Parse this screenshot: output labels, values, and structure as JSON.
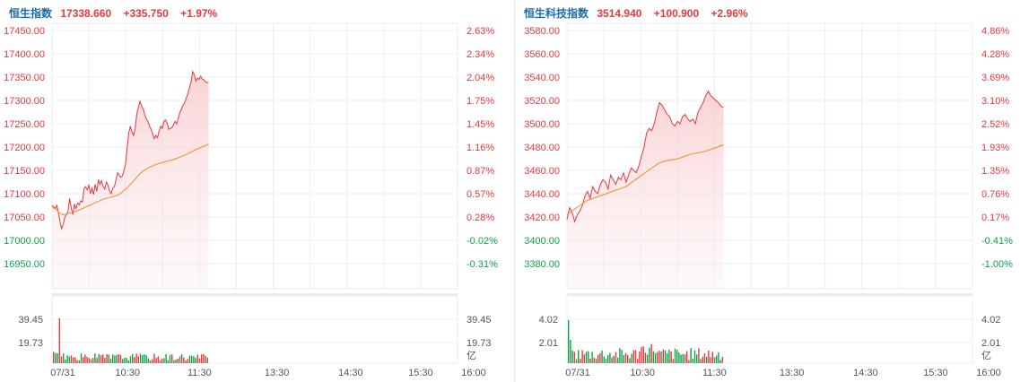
{
  "colors": {
    "up": "#e8373e",
    "down": "#0fa14a",
    "avg": "#f08a24",
    "title": "#1a6bb3",
    "grid": "#e8eef3",
    "axis_text": "#555555"
  },
  "chart_data": [
    {
      "type": "line",
      "title": "恒生指数",
      "last": "17338.660",
      "change": "+335.750",
      "change_pct": "+1.97%",
      "date_label": "07/31",
      "x_ticks": [
        "07/31",
        "10:30",
        "11:30",
        "13:30",
        "14:30",
        "15:30",
        "16:00"
      ],
      "y_left_ticks": [
        "17450.00",
        "17400.00",
        "17350.00",
        "17300.00",
        "17250.00",
        "17200.00",
        "17150.00",
        "17100.00",
        "17050.00",
        "17000.00",
        "16950.00"
      ],
      "y_right_ticks": [
        "2.63%",
        "2.34%",
        "2.04%",
        "1.75%",
        "1.45%",
        "1.16%",
        "0.87%",
        "0.57%",
        "0.28%",
        "-0.02%",
        "-0.31%"
      ],
      "ylim": [
        16900,
        17450
      ],
      "prev_close": 17002.91,
      "price_series": [
        17075,
        17072,
        17068,
        17075,
        17060,
        17040,
        17025,
        17035,
        17050,
        17055,
        17062,
        17090,
        17070,
        17055,
        17078,
        17068,
        17080,
        17076,
        17085,
        17082,
        17110,
        17115,
        17108,
        17118,
        17100,
        17112,
        17098,
        17120,
        17105,
        17130,
        17120,
        17128,
        17115,
        17110,
        17125,
        17118,
        17105,
        17100,
        17112,
        17115,
        17130,
        17145,
        17140,
        17135,
        17138,
        17150,
        17165,
        17200,
        17230,
        17245,
        17232,
        17225,
        17240,
        17270,
        17285,
        17298,
        17288,
        17282,
        17270,
        17260,
        17255,
        17245,
        17238,
        17228,
        17218,
        17225,
        17220,
        17235,
        17245,
        17240,
        17255,
        17258,
        17252,
        17238,
        17240,
        17242,
        17248,
        17255,
        17250,
        17262,
        17275,
        17282,
        17290,
        17296,
        17305,
        17315,
        17328,
        17340,
        17362,
        17355,
        17342,
        17348,
        17345,
        17352,
        17346,
        17344,
        17340,
        17338,
        17339
      ],
      "avg_series": [
        17070,
        17068,
        17060,
        17055,
        17056,
        17058,
        17060,
        17062,
        17065,
        17068,
        17072,
        17075,
        17078,
        17082,
        17085,
        17088,
        17090,
        17092,
        17094,
        17096,
        17100,
        17106,
        17112,
        17120,
        17128,
        17136,
        17144,
        17150,
        17154,
        17158,
        17161,
        17164,
        17166,
        17168,
        17170,
        17172,
        17174,
        17177,
        17180,
        17183,
        17186,
        17190,
        17194,
        17197,
        17200,
        17203,
        17206
      ],
      "volume_label_ticks": [
        "39.45",
        "19.73"
      ],
      "volume_unit": "亿",
      "volume_max": 59.18
    },
    {
      "type": "line",
      "title": "恒生科技指数",
      "last": "3514.940",
      "change": "+100.900",
      "change_pct": "+2.96%",
      "date_label": "07/31",
      "x_ticks": [
        "07/31",
        "10:30",
        "11:30",
        "13:30",
        "14:30",
        "15:30",
        "16:00"
      ],
      "y_left_ticks": [
        "3580.00",
        "3560.00",
        "3540.00",
        "3520.00",
        "3500.00",
        "3480.00",
        "3460.00",
        "3440.00",
        "3420.00",
        "3400.00",
        "3380.00"
      ],
      "y_right_ticks": [
        "4.86%",
        "4.28%",
        "3.69%",
        "3.10%",
        "2.52%",
        "1.93%",
        "1.35%",
        "0.76%",
        "0.17%",
        "-0.41%",
        "-1.00%"
      ],
      "ylim": [
        3360,
        3580
      ],
      "prev_close": 3414.04,
      "price_series": [
        3418,
        3428,
        3424,
        3416,
        3422,
        3425,
        3430,
        3438,
        3442,
        3436,
        3446,
        3442,
        3440,
        3448,
        3452,
        3450,
        3444,
        3456,
        3452,
        3448,
        3454,
        3452,
        3458,
        3450,
        3456,
        3462,
        3460,
        3458,
        3464,
        3472,
        3480,
        3492,
        3496,
        3494,
        3500,
        3510,
        3518,
        3516,
        3512,
        3508,
        3506,
        3500,
        3498,
        3502,
        3500,
        3506,
        3508,
        3504,
        3502,
        3504,
        3500,
        3510,
        3514,
        3518,
        3524,
        3528,
        3524,
        3522,
        3520,
        3518,
        3515,
        3514
      ],
      "avg_series": [
        3422,
        3426,
        3430,
        3434,
        3436,
        3438,
        3440,
        3442,
        3444,
        3446,
        3450,
        3454,
        3458,
        3462,
        3466,
        3468,
        3469,
        3470,
        3472,
        3474,
        3475,
        3476,
        3478,
        3480,
        3482
      ],
      "volume_label_ticks": [
        "4.02",
        "2.01"
      ],
      "volume_unit": "亿",
      "volume_max": 6.03
    }
  ]
}
